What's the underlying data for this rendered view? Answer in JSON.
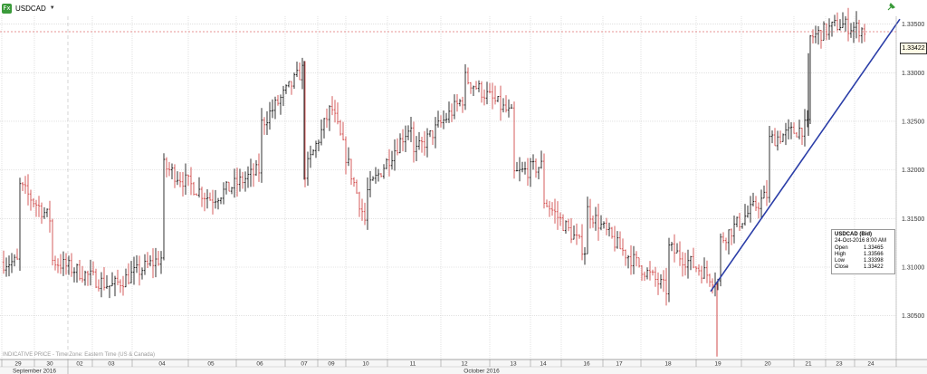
{
  "header": {
    "symbol": "USDCAD",
    "caret": "▼",
    "icon": "fx-icon",
    "pin_icon": "pin-icon"
  },
  "footer_note": "INDICATIVE PRICE - Time Zone: Eastern Time (US & Canada)",
  "current_price_label": "1.33422",
  "legend": {
    "title": "USDCAD (Bid)",
    "date": "24-Oct-2016 8:00 AM",
    "rows": [
      {
        "label": "Open",
        "value": "1.33465"
      },
      {
        "label": "High",
        "value": "1.33566"
      },
      {
        "label": "Low",
        "value": "1.33398"
      },
      {
        "label": "Close",
        "value": "1.33422"
      }
    ]
  },
  "colors": {
    "up": "#1a1a1a",
    "down": "#d24b4b",
    "grid": "#d0d0d0",
    "trendline": "#2b3ea8",
    "price_line": "#e07070",
    "axis_text": "#333333"
  },
  "chart_data": {
    "type": "bar",
    "title": "",
    "symbol": "USDCAD",
    "ylim": [
      1.3005,
      1.3358
    ],
    "yticks": [
      "1.33500",
      "1.33000",
      "1.32500",
      "1.32000",
      "1.31500",
      "1.31000",
      "1.30500"
    ],
    "ytick_values": [
      1.335,
      1.33,
      1.325,
      1.32,
      1.315,
      1.31,
      1.305
    ],
    "day_labels": [
      "29",
      "30",
      "02",
      "03",
      "04",
      "05",
      "06",
      "07",
      "09",
      "10",
      "11",
      "12",
      "13",
      "14",
      "16",
      "17",
      "18",
      "19",
      "20",
      "21",
      "23",
      "24"
    ],
    "month_labels": [
      "September 2016",
      "October 2016"
    ],
    "current_price": 1.33422,
    "trendline": {
      "start": {
        "day": "19",
        "price": 1.3075
      },
      "end": {
        "day": "24",
        "price": 1.3355
      }
    },
    "key_points": [
      {
        "day": "29",
        "price": 1.3105
      },
      {
        "day": "29",
        "price": 1.3185
      },
      {
        "day": "30",
        "price": 1.315
      },
      {
        "day": "30",
        "price": 1.3108
      },
      {
        "day": "02",
        "price": 1.3095
      },
      {
        "day": "03",
        "price": 1.308
      },
      {
        "day": "04",
        "price": 1.311
      },
      {
        "day": "04",
        "price": 1.3205
      },
      {
        "day": "05",
        "price": 1.317
      },
      {
        "day": "06",
        "price": 1.32
      },
      {
        "day": "06",
        "price": 1.3245
      },
      {
        "day": "07",
        "price": 1.3305
      },
      {
        "day": "07",
        "price": 1.3195
      },
      {
        "day": "09",
        "price": 1.3265
      },
      {
        "day": "10",
        "price": 1.3145
      },
      {
        "day": "10",
        "price": 1.3175
      },
      {
        "day": "11",
        "price": 1.325
      },
      {
        "day": "11",
        "price": 1.3215
      },
      {
        "day": "12",
        "price": 1.3275
      },
      {
        "day": "12",
        "price": 1.3295
      },
      {
        "day": "13",
        "price": 1.3255
      },
      {
        "day": "13",
        "price": 1.3195
      },
      {
        "day": "14",
        "price": 1.3205
      },
      {
        "day": "14",
        "price": 1.317
      },
      {
        "day": "16",
        "price": 1.3115
      },
      {
        "day": "16",
        "price": 1.316
      },
      {
        "day": "17",
        "price": 1.312
      },
      {
        "day": "18",
        "price": 1.3075
      },
      {
        "day": "18",
        "price": 1.312
      },
      {
        "day": "19",
        "price": 1.3085
      },
      {
        "day": "19",
        "price": 1.308
      },
      {
        "day": "19",
        "price": 1.3125
      },
      {
        "day": "20",
        "price": 1.3175
      },
      {
        "day": "20",
        "price": 1.323
      },
      {
        "day": "21",
        "price": 1.3245
      },
      {
        "day": "21",
        "price": 1.3315
      },
      {
        "day": "21",
        "price": 1.3335
      },
      {
        "day": "23",
        "price": 1.335
      },
      {
        "day": "24",
        "price": 1.33422
      }
    ]
  }
}
